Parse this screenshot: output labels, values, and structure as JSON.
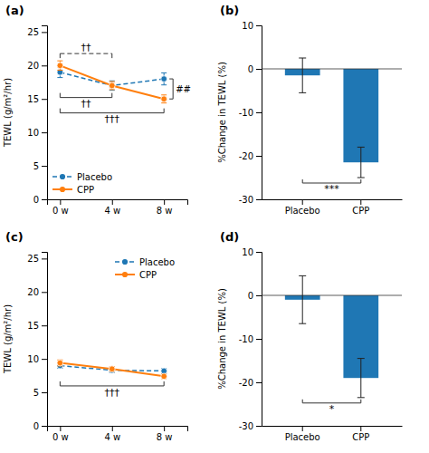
{
  "chart_data": [
    {
      "type": "line",
      "title": "(a)",
      "ylabel": "TEWL (g/m²/hr)",
      "x": [
        0,
        4,
        8
      ],
      "xlim": [
        -1,
        9.8
      ],
      "xticks": [
        {
          "value": 0,
          "label": "0 w"
        },
        {
          "value": 4,
          "label": "4 w"
        },
        {
          "value": 8,
          "label": "8 w"
        }
      ],
      "ylim": [
        0,
        26
      ],
      "yticks": [
        0,
        5,
        10,
        15,
        20,
        25
      ],
      "series": [
        {
          "name": "Placebo",
          "values": [
            19.0,
            17.0,
            18.0
          ],
          "errors": [
            0.8,
            0.7,
            0.9
          ],
          "marker": "circle",
          "line_style": "dashed"
        },
        {
          "name": "CPP",
          "values": [
            20.0,
            17.0,
            15.0
          ],
          "errors": [
            0.7,
            0.6,
            0.6
          ],
          "marker": "circle",
          "line_style": "solid"
        }
      ],
      "legend": "lower left",
      "grid": false,
      "annotations": [
        {
          "text": "††",
          "x": [
            0,
            4
          ],
          "series": [
            "Placebo"
          ]
        },
        {
          "text": "††",
          "x": [
            0,
            4
          ],
          "series": [
            "CPP"
          ]
        },
        {
          "text": "†††",
          "x": [
            0,
            8
          ],
          "series": [
            "CPP"
          ]
        },
        {
          "text": "##",
          "x": [
            8
          ],
          "series": [
            "Placebo",
            "CPP"
          ]
        }
      ]
    },
    {
      "type": "bar",
      "title": "(b)",
      "ylabel": "%Change in TEWL (%)",
      "categories": [
        "Placebo",
        "CPP"
      ],
      "values": [
        -1.5,
        -21.5
      ],
      "errors": [
        4.0,
        3.5
      ],
      "ylim": [
        -30,
        10
      ],
      "yticks": [
        -30,
        -20,
        -10,
        0,
        10
      ],
      "grid": false,
      "annotations": [
        {
          "text": "***",
          "x": [
            "Placebo",
            "CPP"
          ]
        }
      ]
    },
    {
      "type": "line",
      "title": "(c)",
      "ylabel": "TEWL (g/m²/hr)",
      "x": [
        0,
        4,
        8
      ],
      "xlim": [
        -1,
        9.8
      ],
      "xticks": [
        {
          "value": 0,
          "label": "0 w"
        },
        {
          "value": 4,
          "label": "4 w"
        },
        {
          "value": 8,
          "label": "8 w"
        }
      ],
      "ylim": [
        0,
        26
      ],
      "yticks": [
        0,
        5,
        10,
        15,
        20,
        25
      ],
      "series": [
        {
          "name": "Placebo",
          "values": [
            9.0,
            8.3,
            8.2
          ],
          "errors": [
            0.4,
            0.35,
            0.35
          ],
          "marker": "circle",
          "line_style": "dashed"
        },
        {
          "name": "CPP",
          "values": [
            9.4,
            8.5,
            7.4
          ],
          "errors": [
            0.45,
            0.35,
            0.35
          ],
          "marker": "circle",
          "line_style": "solid"
        }
      ],
      "legend": "upper right",
      "grid": false,
      "annotations": [
        {
          "text": "†††",
          "x": [
            0,
            8
          ],
          "series": [
            "Placebo",
            "CPP"
          ]
        }
      ]
    },
    {
      "type": "bar",
      "title": "(d)",
      "ylabel": "%Change in TEWL (%)",
      "categories": [
        "Placebo",
        "CPP"
      ],
      "values": [
        -1.0,
        -19.0
      ],
      "errors": [
        5.5,
        4.5
      ],
      "ylim": [
        -30,
        10
      ],
      "yticks": [
        -30,
        -20,
        -10,
        0,
        10
      ],
      "grid": false,
      "annotations": [
        {
          "text": "*",
          "x": [
            "Placebo",
            "CPP"
          ]
        }
      ]
    }
  ]
}
